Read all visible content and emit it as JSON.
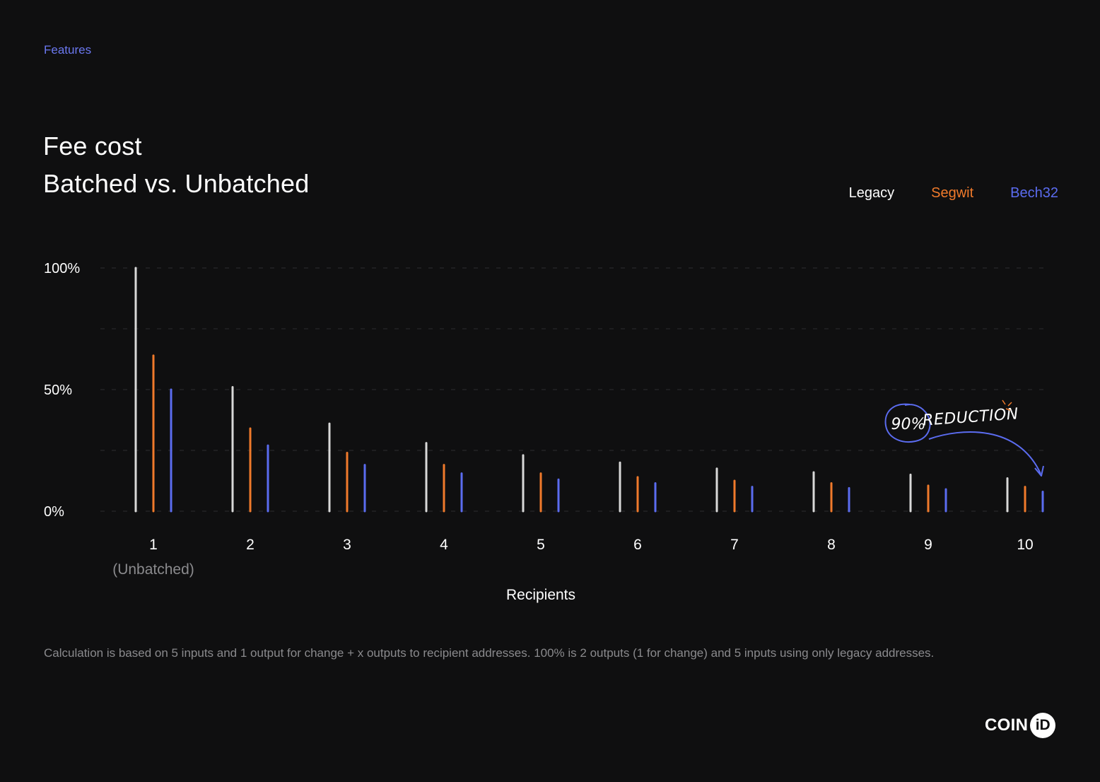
{
  "breadcrumb": "Features",
  "chart_data": {
    "type": "bar",
    "title": "Fee cost",
    "subtitle": "Batched vs. Unbatched",
    "xlabel": "Recipients",
    "ylabel": "",
    "ylim": [
      0,
      100
    ],
    "yticks": [
      "100%",
      "50%",
      "0%"
    ],
    "grid": true,
    "legend_position": "top-right",
    "categories": [
      "1",
      "2",
      "3",
      "4",
      "5",
      "6",
      "7",
      "8",
      "9",
      "10"
    ],
    "category_sublabels": [
      "(Unbatched)",
      "",
      "",
      "",
      "",
      "",
      "",
      "",
      "",
      ""
    ],
    "series": [
      {
        "name": "Legacy",
        "color": "#d8d8d8",
        "values": [
          100,
          51,
          36,
          28,
          23,
          20,
          17.5,
          16,
          15,
          13.5
        ]
      },
      {
        "name": "Segwit",
        "color": "#f07a2b",
        "values": [
          64,
          34,
          24,
          19,
          15.5,
          14,
          12.5,
          11.5,
          10.5,
          10
        ]
      },
      {
        "name": "Bech32",
        "color": "#5b6cf0",
        "values": [
          50,
          27,
          19,
          15.5,
          13,
          11.5,
          10,
          9.5,
          9,
          8
        ]
      }
    ],
    "annotation": {
      "value": "90%",
      "label": "REDUCTION",
      "color": "#5b6cf0"
    }
  },
  "footnote": "Calculation is based on 5 inputs and 1 output for change + x outputs to recipient addresses. 100% is 2 outputs (1 for change) and 5 inputs using only legacy addresses.",
  "logo": {
    "text": "COIN",
    "mark": "iD"
  }
}
